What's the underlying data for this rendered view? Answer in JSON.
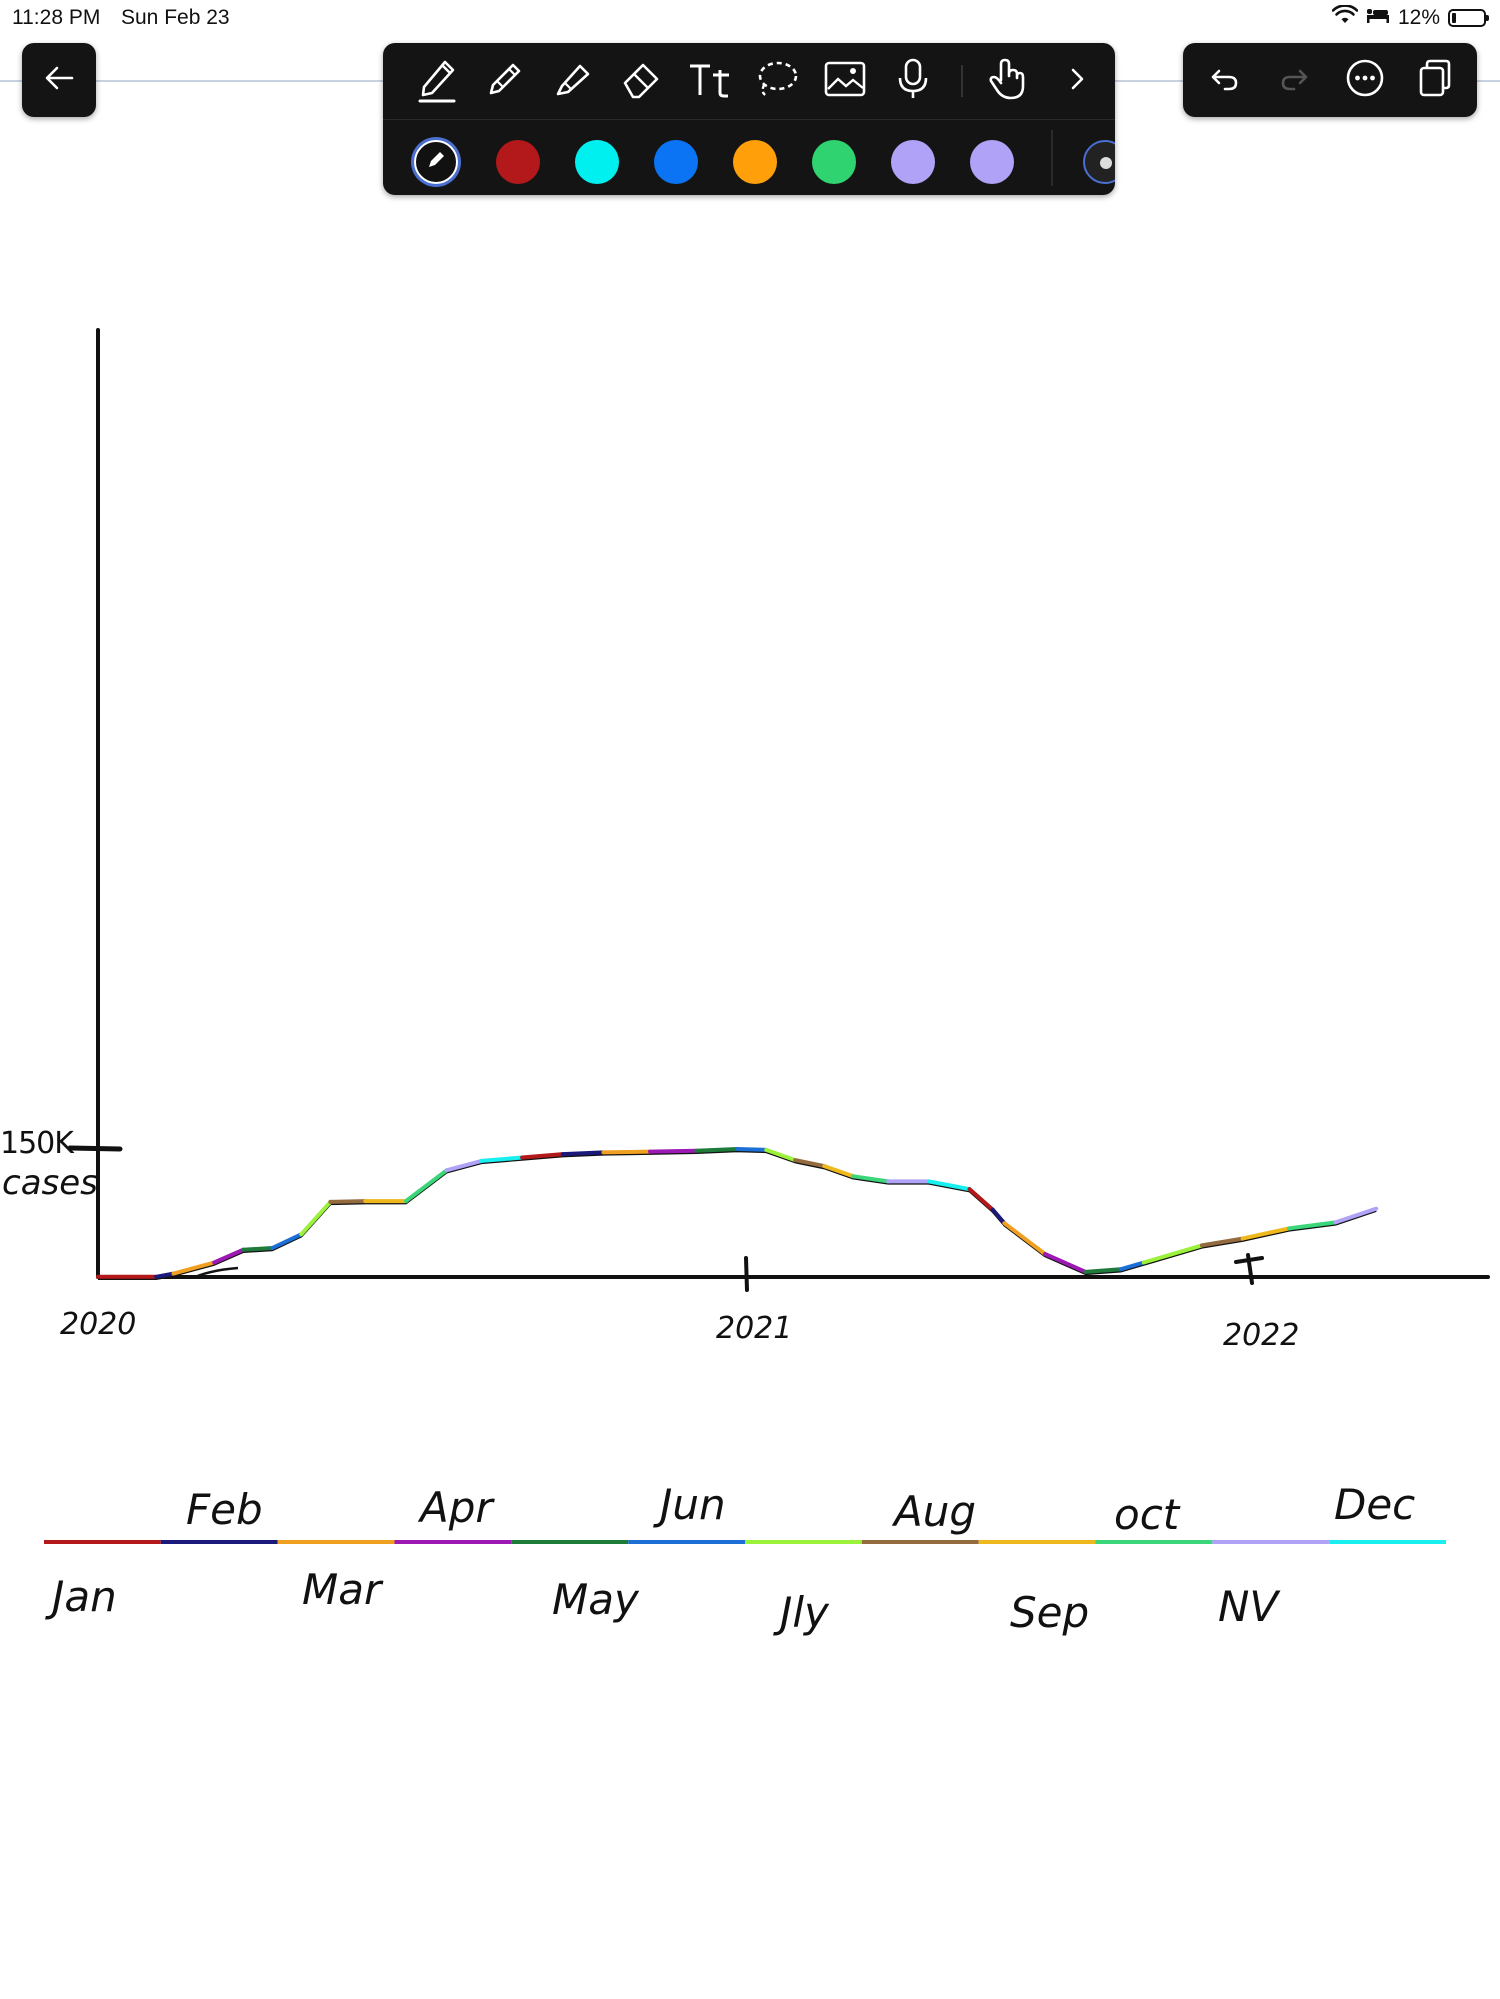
{
  "status_bar": {
    "time": "11:28 PM",
    "date": "Sun Feb 23",
    "battery": "12%"
  },
  "toolbar": {
    "tools": [
      "pen-tool-icon",
      "pencil-icon",
      "highlighter-icon",
      "eraser-icon",
      "text-tool-icon",
      "lasso-icon",
      "image-icon",
      "microphone-icon",
      "hand-pointer-icon",
      "chevron-right-icon"
    ],
    "colors": [
      "#111111",
      "#b3191a",
      "#00f0f0",
      "#0a74f5",
      "#ff9f0a",
      "#2fd36f",
      "#b0a2f7",
      "#b0a2f7"
    ],
    "right_tools": [
      "undo-icon",
      "redo-icon",
      "more-icon",
      "pages-icon"
    ]
  },
  "handwriting": {
    "y_axis_label_line1": "150K",
    "y_axis_label_line2": "cases",
    "years": [
      "2020",
      "2021",
      "2022"
    ],
    "legend_top_months": [
      "Feb",
      "Apr",
      "Jun",
      "Aug",
      "oct",
      "Dec"
    ],
    "legend_bottom_months": [
      "Jan",
      "Mar",
      "May",
      "Jly",
      "Sep",
      "NV"
    ]
  },
  "chart_data": {
    "type": "line",
    "ylabel": "150K cases",
    "x_ticks": [
      "2020",
      "2021",
      "2022"
    ],
    "y_ticks": [
      "150K"
    ],
    "xlim": [
      2020.0,
      2022.45
    ],
    "ylim": [
      0,
      150000
    ],
    "series": [
      {
        "x": [
          2020.0,
          2020.1,
          2020.13,
          2020.2,
          2020.25,
          2020.3,
          2020.35,
          2020.4,
          2020.46,
          2020.53,
          2020.6,
          2020.66,
          2020.73,
          2020.8,
          2020.87,
          2020.95,
          2021.03,
          2021.1,
          2021.15,
          2021.2,
          2021.25,
          2021.3,
          2021.36,
          2021.43,
          2021.5,
          2021.54,
          2021.56,
          2021.63,
          2021.7,
          2021.76,
          2021.8,
          2021.9,
          2021.97,
          2022.05,
          2022.13,
          2022.2
        ],
        "values": [
          200,
          200,
          4000,
          17000,
          32000,
          34000,
          50000,
          88000,
          89000,
          89000,
          125000,
          136000,
          140000,
          144000,
          146000,
          147000,
          148000,
          150000,
          149000,
          137000,
          130000,
          118000,
          112000,
          112000,
          103000,
          79000,
          63000,
          27000,
          6000,
          9000,
          17000,
          37000,
          45000,
          57000,
          64000,
          80000
        ]
      }
    ],
    "segment_colors_by_month": [
      {
        "month": "Jan",
        "color": "#b3191a"
      },
      {
        "month": "Feb",
        "color": "#1b1a7a"
      },
      {
        "month": "Mar",
        "color": "#f0a020"
      },
      {
        "month": "Apr",
        "color": "#9c1ab3"
      },
      {
        "month": "May",
        "color": "#1e7b3a"
      },
      {
        "month": "Jun",
        "color": "#1d6fd6"
      },
      {
        "month": "Jly",
        "color": "#9cf13a"
      },
      {
        "month": "Aug",
        "color": "#946b3e"
      },
      {
        "month": "Sep",
        "color": "#efb81c"
      },
      {
        "month": "oct",
        "color": "#3bd67a"
      },
      {
        "month": "NV",
        "color": "#b0a2f7"
      },
      {
        "month": "Dec",
        "color": "#18f0f0"
      }
    ]
  }
}
